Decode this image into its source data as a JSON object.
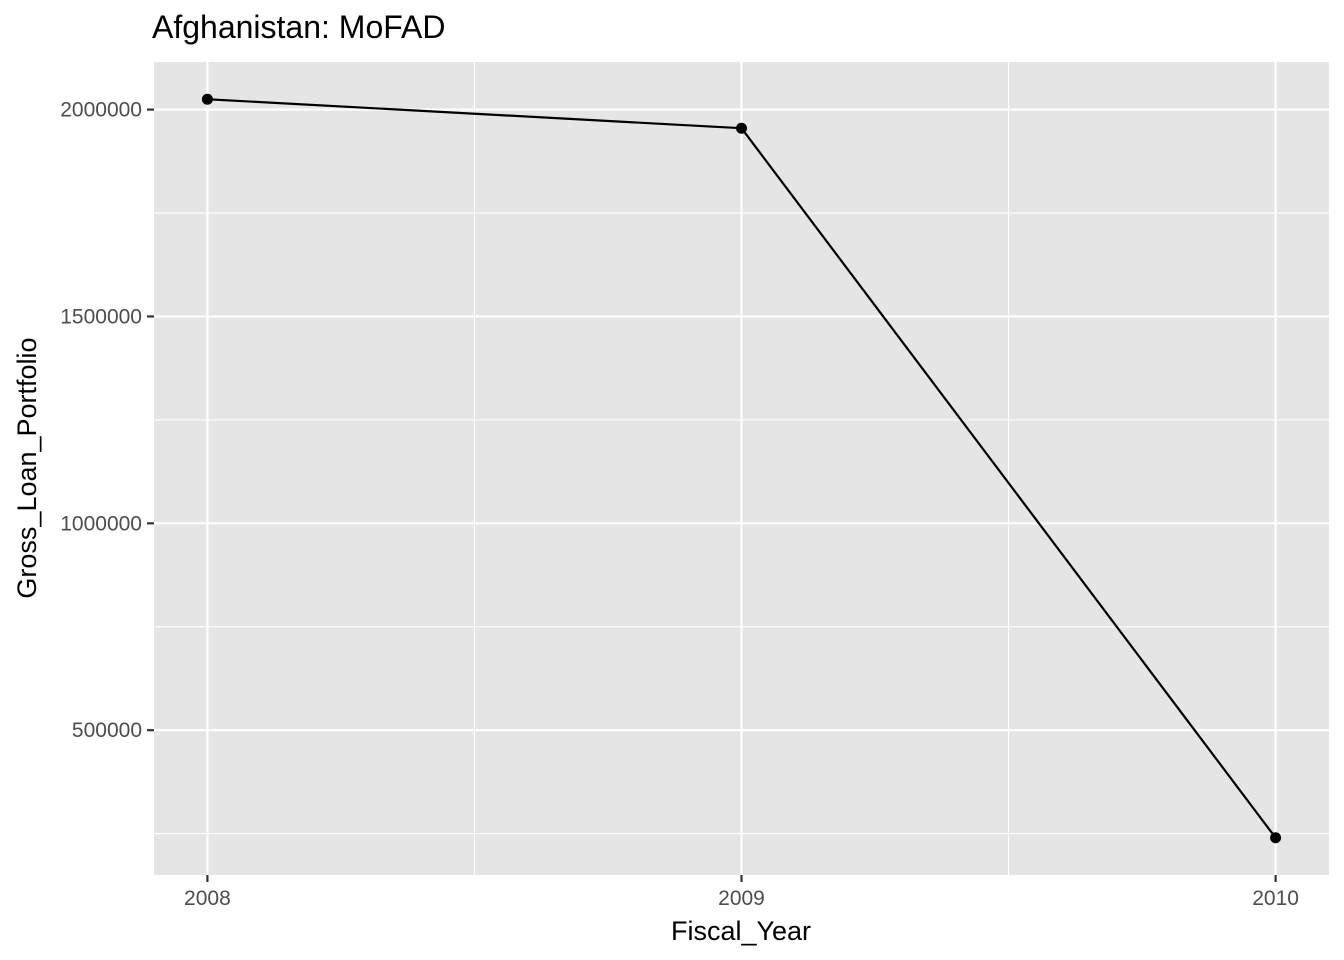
{
  "chart_data": {
    "type": "line",
    "title": "Afghanistan:  MoFAD",
    "xlabel": "Fiscal_Year",
    "ylabel": "Gross_Loan_Portfolio",
    "x": [
      2008,
      2009,
      2010
    ],
    "y": [
      2025000,
      1955000,
      240000
    ],
    "x_ticks": [
      "2008",
      "2009",
      "2010"
    ],
    "y_ticks": [
      500000,
      1000000,
      1500000,
      2000000
    ],
    "y_tick_labels": [
      "500000",
      "1000000",
      "1500000",
      "2000000"
    ],
    "xlim": [
      2007.9,
      2010.1
    ],
    "ylim": [
      150000,
      2115000
    ],
    "grid": true,
    "legend": "none",
    "colors": {
      "panel": "#E5E5E5",
      "grid": "#FFFFFF",
      "line": "#000000",
      "tick": "#333333",
      "tick_label": "#4D4D4D"
    }
  }
}
